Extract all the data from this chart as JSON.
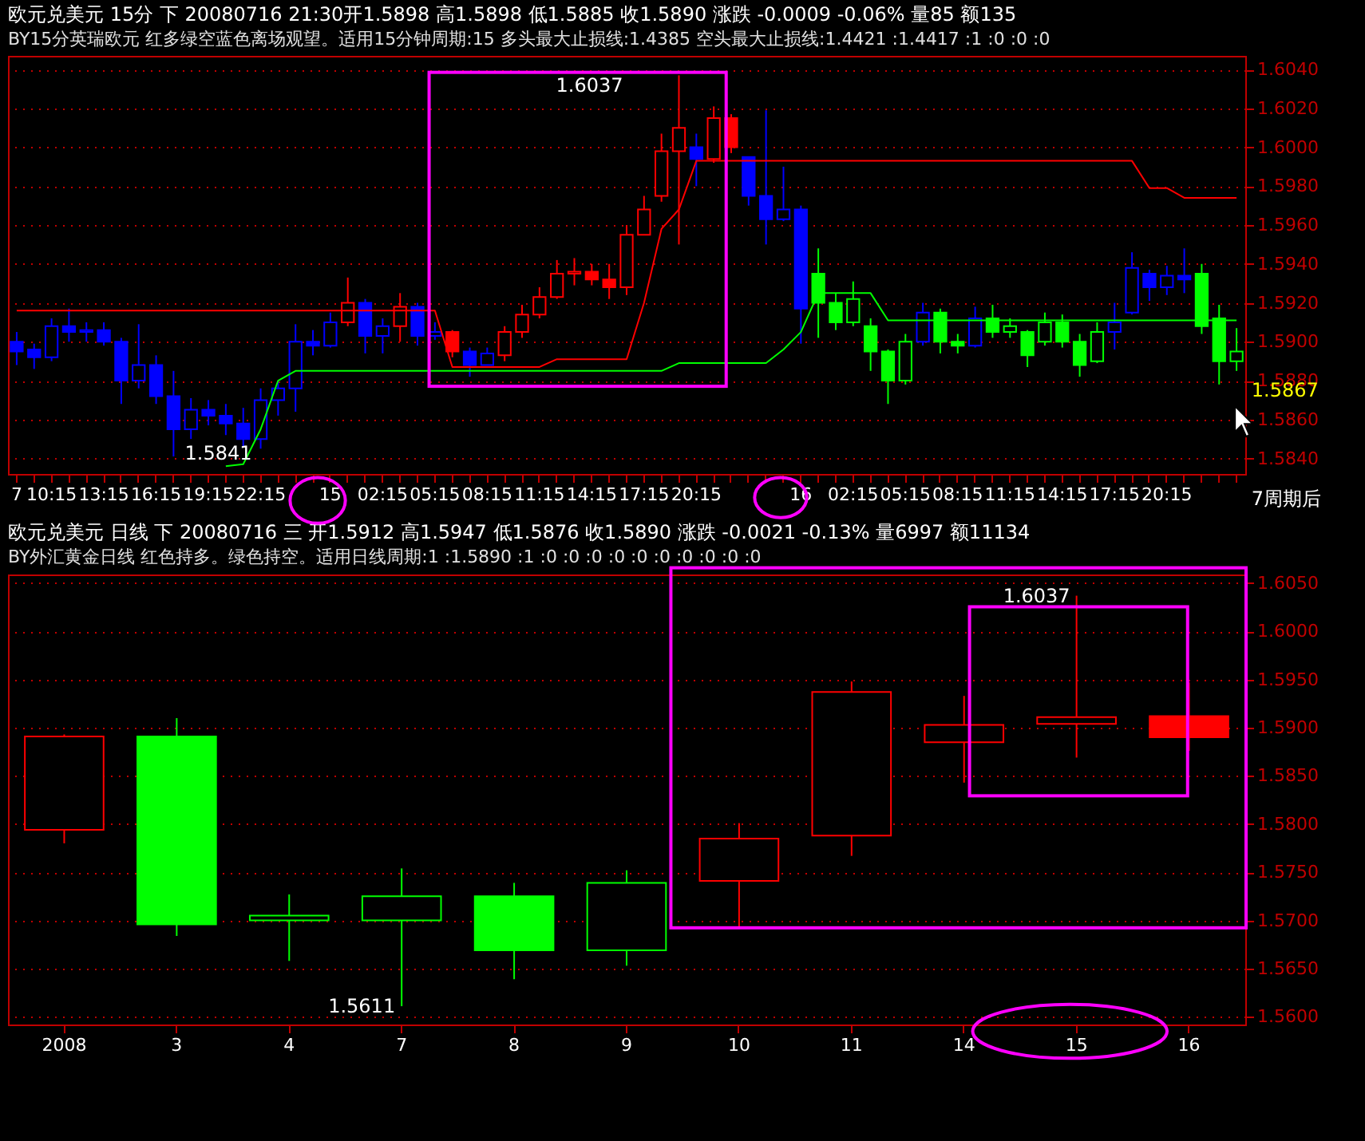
{
  "chart_data": [
    {
      "type": "candlestick",
      "title": "欧元兑美元 15分 下 20080716 21:30开1.5898 高1.5898 低1.5885 收1.5890 涨跌 -0.0009 -0.06% 量85 额135",
      "subtitle": "BY15分英瑞欧元 红多绿空蓝色离场观望。适用15分钟周期:15 多头最大止损线:1.4385 空头最大止损线:1.4421 :1.4417 :1 :0 :0 :0",
      "categories": [
        "7",
        null,
        "10:15",
        null,
        null,
        "13:15",
        null,
        null,
        "16:15",
        null,
        null,
        "19:15",
        null,
        null,
        "22:15",
        null,
        null,
        null,
        "15",
        null,
        null,
        "02:15",
        null,
        null,
        "05:15",
        null,
        null,
        "08:15",
        null,
        null,
        "11:15",
        null,
        null,
        "14:15",
        null,
        null,
        "17:15",
        null,
        null,
        "20:15",
        null,
        null,
        null,
        null,
        null,
        "16",
        null,
        null,
        "02:15",
        null,
        null,
        "05:15",
        null,
        null,
        "08:15",
        null,
        null,
        "11:15",
        null,
        null,
        "14:15",
        null,
        null,
        "17:15",
        null,
        null,
        "20:15",
        null,
        null,
        null,
        null
      ],
      "ohlc": [
        [
          1.59,
          1.5905,
          1.5888,
          1.5895
        ],
        [
          1.5896,
          1.5899,
          1.5886,
          1.5892
        ],
        [
          1.5892,
          1.5912,
          1.589,
          1.5908
        ],
        [
          1.5908,
          1.5917,
          1.59,
          1.5905
        ],
        [
          1.5905,
          1.591,
          1.59,
          1.5906
        ],
        [
          1.5906,
          1.591,
          1.5898,
          1.59
        ],
        [
          1.59,
          1.5902,
          1.5868,
          1.588
        ],
        [
          1.588,
          1.5909,
          1.5876,
          1.5888
        ],
        [
          1.5888,
          1.5893,
          1.5868,
          1.5872
        ],
        [
          1.5872,
          1.5885,
          1.5841,
          1.5855
        ],
        [
          1.5855,
          1.5871,
          1.585,
          1.5865
        ],
        [
          1.5865,
          1.587,
          1.5857,
          1.5862
        ],
        [
          1.5862,
          1.5868,
          1.5852,
          1.5858
        ],
        [
          1.5858,
          1.5866,
          1.5846,
          1.585
        ],
        [
          1.585,
          1.5876,
          1.5845,
          1.587
        ],
        [
          1.587,
          1.588,
          1.5862,
          1.5876
        ],
        [
          1.5876,
          1.5909,
          1.5864,
          1.59
        ],
        [
          1.59,
          1.5906,
          1.5893,
          1.5898
        ],
        [
          1.5898,
          1.5915,
          1.5897,
          1.591
        ],
        [
          1.591,
          1.5933,
          1.5908,
          1.592
        ],
        [
          1.592,
          1.5922,
          1.5894,
          1.5903
        ],
        [
          1.5903,
          1.5912,
          1.5894,
          1.5908
        ],
        [
          1.5908,
          1.5925,
          1.59,
          1.5918
        ],
        [
          1.5918,
          1.592,
          1.5898,
          1.5903
        ],
        [
          1.5903,
          1.591,
          1.5901,
          1.5905
        ],
        [
          1.5905,
          1.5906,
          1.5892,
          1.5895
        ],
        [
          1.5895,
          1.5897,
          1.5882,
          1.5888
        ],
        [
          1.5888,
          1.5897,
          1.5888,
          1.5894
        ],
        [
          1.5893,
          1.5908,
          1.589,
          1.5905
        ],
        [
          1.5905,
          1.5919,
          1.5902,
          1.5914
        ],
        [
          1.5914,
          1.5928,
          1.5912,
          1.5923
        ],
        [
          1.5923,
          1.5942,
          1.5922,
          1.5935
        ],
        [
          1.5935,
          1.5943,
          1.5929,
          1.5936
        ],
        [
          1.5936,
          1.594,
          1.5929,
          1.5932
        ],
        [
          1.5932,
          1.594,
          1.5922,
          1.5928
        ],
        [
          1.5928,
          1.596,
          1.5924,
          1.5955
        ],
        [
          1.5955,
          1.5975,
          1.5955,
          1.5968
        ],
        [
          1.5975,
          1.6007,
          1.5972,
          1.5998
        ],
        [
          1.5998,
          1.6037,
          1.595,
          1.601
        ],
        [
          1.6,
          1.6007,
          1.598,
          1.5994
        ],
        [
          1.5994,
          1.6021,
          1.5992,
          1.6015
        ],
        [
          1.6015,
          1.6017,
          1.5997,
          1.6
        ],
        [
          1.5995,
          1.5995,
          1.597,
          1.5975
        ],
        [
          1.5975,
          1.6019,
          1.595,
          1.5963
        ],
        [
          1.5963,
          1.599,
          1.5962,
          1.5968
        ],
        [
          1.5968,
          1.597,
          1.5899,
          1.5917
        ],
        [
          1.5935,
          1.5948,
          1.5902,
          1.592
        ],
        [
          1.592,
          1.5925,
          1.5906,
          1.591
        ],
        [
          1.591,
          1.5931,
          1.5908,
          1.5922
        ],
        [
          1.5908,
          1.5912,
          1.5885,
          1.5895
        ],
        [
          1.5895,
          1.5896,
          1.5868,
          1.588
        ],
        [
          1.588,
          1.5904,
          1.5878,
          1.59
        ],
        [
          1.59,
          1.592,
          1.5898,
          1.5915
        ],
        [
          1.5915,
          1.5917,
          1.5894,
          1.59
        ],
        [
          1.59,
          1.5904,
          1.5894,
          1.5898
        ],
        [
          1.5898,
          1.5918,
          1.5897,
          1.5912
        ],
        [
          1.5912,
          1.5919,
          1.5902,
          1.5905
        ],
        [
          1.5905,
          1.5912,
          1.5902,
          1.5908
        ],
        [
          1.5905,
          1.5906,
          1.5887,
          1.5893
        ],
        [
          1.59,
          1.5915,
          1.5898,
          1.591
        ],
        [
          1.591,
          1.5914,
          1.5897,
          1.59
        ],
        [
          1.59,
          1.5904,
          1.5882,
          1.5888
        ],
        [
          1.589,
          1.591,
          1.5889,
          1.5905
        ],
        [
          1.5905,
          1.592,
          1.5896,
          1.591
        ],
        [
          1.5915,
          1.5946,
          1.5914,
          1.5938
        ],
        [
          1.5935,
          1.5937,
          1.5921,
          1.5928
        ],
        [
          1.5928,
          1.5939,
          1.5924,
          1.5934
        ],
        [
          1.5934,
          1.5948,
          1.5925,
          1.5932
        ],
        [
          1.5935,
          1.594,
          1.5904,
          1.5908
        ],
        [
          1.5912,
          1.5919,
          1.5878,
          1.589
        ],
        [
          1.589,
          1.5907,
          1.5885,
          1.5895
        ]
      ],
      "colors": [
        "#0000ff",
        "#0000ff",
        "#0000ff",
        "#0000ff",
        "#0000ff",
        "#0000ff",
        "#0000ff",
        "#0000ff",
        "#0000ff",
        "#0000ff",
        "#0000ff",
        "#0000ff",
        "#0000ff",
        "#0000ff",
        "#0000ff",
        "#0000ff",
        "#0000ff",
        "#0000ff",
        "#0000ff",
        "#ff0000",
        "#0000ff",
        "#0000ff",
        "#ff0000",
        "#0000ff",
        "#0000ff",
        "#ff0000",
        "#0000ff",
        "#0000ff",
        "#ff0000",
        "#ff0000",
        "#ff0000",
        "#ff0000",
        "#ff0000",
        "#ff0000",
        "#ff0000",
        "#ff0000",
        "#ff0000",
        "#ff0000",
        "#ff0000",
        "#0000ff",
        "#ff0000",
        "#ff0000",
        "#0000ff",
        "#0000ff",
        "#0000ff",
        "#0000ff",
        "#00ff00",
        "#00ff00",
        "#00ff00",
        "#00ff00",
        "#00ff00",
        "#00ff00",
        "#0000ff",
        "#00ff00",
        "#00ff00",
        "#0000ff",
        "#00ff00",
        "#00ff00",
        "#00ff00",
        "#00ff00",
        "#00ff00",
        "#00ff00",
        "#00ff00",
        "#0000ff",
        "#0000ff",
        "#0000ff",
        "#0000ff",
        "#0000ff",
        "#00ff00",
        "#00ff00",
        "#00ff00"
      ],
      "series": [
        {
          "type": "line",
          "color": "#ff0000",
          "values": [
            1.5916,
            1.5916,
            1.5916,
            1.5916,
            1.5916,
            1.5916,
            1.5916,
            1.5916,
            1.5916,
            1.5916,
            1.5916,
            1.5916,
            1.5916,
            1.5916,
            1.5916,
            1.5916,
            1.5916,
            1.5916,
            1.5916,
            1.5916,
            1.5916,
            1.5916,
            1.5916,
            1.5916,
            1.5916,
            1.5887,
            1.5887,
            1.5887,
            1.5887,
            1.5887,
            1.5887,
            1.5891,
            1.5891,
            1.5891,
            1.5891,
            1.5891,
            1.592,
            1.5958,
            1.5968,
            1.5993,
            1.5993,
            1.5993,
            1.5993,
            1.5993,
            1.5993,
            1.5993,
            1.5993,
            1.5993,
            1.5993,
            1.5993,
            1.5993,
            1.5993,
            1.5993,
            1.5993,
            1.5993,
            1.5993,
            1.5993,
            1.5993,
            1.5993,
            1.5993,
            1.5993,
            1.5993,
            1.5993,
            1.5993,
            1.5993,
            1.5979,
            1.5979,
            1.5974,
            1.5974,
            1.5974,
            1.5974
          ]
        },
        {
          "type": "line",
          "color": "#00ff00",
          "values": [
            null,
            null,
            null,
            null,
            null,
            null,
            null,
            null,
            null,
            null,
            null,
            null,
            1.5836,
            1.5837,
            1.5855,
            1.588,
            1.5885,
            1.5885,
            1.5885,
            1.5885,
            1.5885,
            1.5885,
            1.5885,
            1.5885,
            1.5885,
            1.5885,
            1.5885,
            1.5885,
            1.5885,
            1.5885,
            1.5885,
            1.5885,
            1.5885,
            1.5885,
            1.5885,
            1.5885,
            1.5885,
            1.5885,
            1.5889,
            1.5889,
            1.5889,
            1.5889,
            1.5889,
            1.5889,
            1.5896,
            1.5905,
            1.5925,
            1.5925,
            1.5925,
            1.5925,
            1.5911,
            1.5911,
            1.5911,
            1.5911,
            1.5911,
            1.5911,
            1.5911,
            1.5911,
            1.5911,
            1.5911,
            1.5911,
            1.5911,
            1.5911,
            1.5911,
            1.5911,
            1.5911,
            1.5911,
            1.5911,
            1.5911,
            1.5911,
            1.5911
          ]
        }
      ],
      "ylim": [
        1.5832,
        1.6047
      ],
      "yticks": [
        {
          "value": 1.584,
          "label": "1.5840"
        },
        {
          "value": 1.586,
          "label": "1.5860"
        },
        {
          "value": 1.588,
          "label": "1.5880"
        },
        {
          "value": 1.59,
          "label": "1.5900"
        },
        {
          "value": 1.592,
          "label": "1.5920"
        },
        {
          "value": 1.594,
          "label": "1.5940"
        },
        {
          "value": 1.596,
          "label": "1.5960"
        },
        {
          "value": 1.598,
          "label": "1.5980"
        },
        {
          "value": 1.6,
          "label": "1.6000"
        },
        {
          "value": 1.602,
          "label": "1.6020"
        },
        {
          "value": 1.604,
          "label": "1.6040"
        }
      ],
      "grid": "y",
      "annotations": [
        "1.6037",
        "1.5841",
        "1.5867",
        "7周期后"
      ]
    },
    {
      "type": "candlestick",
      "title": "欧元兑美元 日线 下 20080716 三 开1.5912 高1.5947 低1.5876 收1.5890 涨跌 -0.0021 -0.13% 量6997 额11134",
      "subtitle": "BY外汇黄金日线 红色持多。绿色持空。适用日线周期:1 :1.5890 :1 :0 :0 :0 :0 :0 :0 :0 :0 :0 :0",
      "categories": [
        "2008",
        "3",
        "4",
        "7",
        "8",
        "9",
        "10",
        "11",
        "14",
        "15",
        "16"
      ],
      "ohlc": [
        [
          1.5794,
          1.5893,
          1.578,
          1.5891
        ],
        [
          1.5891,
          1.591,
          1.5684,
          1.5696
        ],
        [
          1.57,
          1.5727,
          1.5658,
          1.5705
        ],
        [
          1.57,
          1.5754,
          1.5611,
          1.5725
        ],
        [
          1.5725,
          1.5739,
          1.5639,
          1.5669
        ],
        [
          1.5669,
          1.5752,
          1.5653,
          1.5739
        ],
        [
          1.5741,
          1.5801,
          1.5692,
          1.5785
        ],
        [
          1.5788,
          1.5948,
          1.5767,
          1.5937
        ],
        [
          1.5885,
          1.5933,
          1.5843,
          1.5903
        ],
        [
          1.5904,
          1.6037,
          1.5869,
          1.5911
        ],
        [
          1.5912,
          1.5947,
          1.5876,
          1.589
        ]
      ],
      "colors": [
        "#ff0000",
        "#00ff00",
        "#00ff00",
        "#00ff00",
        "#00ff00",
        "#00ff00",
        "#ff0000",
        "#ff0000",
        "#ff0000",
        "#ff0000",
        "#ff0000"
      ],
      "ylim": [
        1.5592,
        1.6059
      ],
      "yticks": [
        {
          "value": 1.56,
          "label": "1.5600"
        },
        {
          "value": 1.565,
          "label": "1.5650"
        },
        {
          "value": 1.57,
          "label": "1.5700"
        },
        {
          "value": 1.575,
          "label": "1.5750"
        },
        {
          "value": 1.58,
          "label": "1.5800"
        },
        {
          "value": 1.585,
          "label": "1.5850"
        },
        {
          "value": 1.59,
          "label": "1.5900"
        },
        {
          "value": 1.595,
          "label": "1.5950"
        },
        {
          "value": 1.6,
          "label": "1.6000"
        },
        {
          "value": 1.605,
          "label": "1.6050"
        }
      ],
      "grid": "y",
      "annotations": [
        {
          "text": "1.5611",
          "x": "7",
          "y": 1.5611
        },
        {
          "text": "1.6037",
          "x": "15",
          "y": 1.6037
        }
      ]
    }
  ]
}
